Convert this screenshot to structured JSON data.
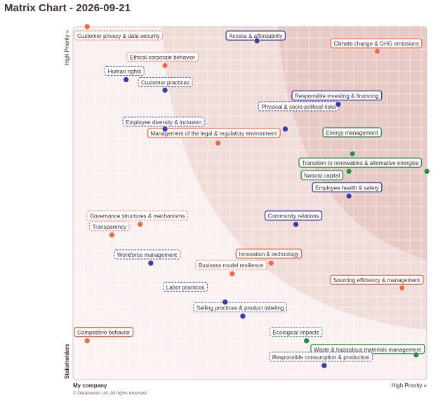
{
  "title": "Matrix Chart - 2026-09-21",
  "y_axis": {
    "top_label": "High Priority »",
    "bottom_label": "Stakeholders"
  },
  "x_axis": {
    "left_label": "My company",
    "right_label": "High Priority »"
  },
  "footer": "© Datamaran Ltd. All rights reserved",
  "colors": {
    "orange": "#f06a47",
    "blue": "#3a3aa8",
    "green": "#2f8a45",
    "background": "#f7eceb",
    "zone_mid": "#efd8d5",
    "zone_high": "#e7c6c2"
  },
  "chart_data": {
    "type": "scatter",
    "title": "Matrix Chart - 2026-09-21",
    "xlabel": "My company",
    "ylabel": "Stakeholders",
    "xlim": [
      0,
      100
    ],
    "ylim": [
      0,
      100
    ],
    "grid": true,
    "points": [
      {
        "label": "Customer privacy & data security",
        "x": 4,
        "y": 100,
        "group": "orange",
        "label_style": "dashed"
      },
      {
        "label": "Access & affordability",
        "x": 52,
        "y": 96,
        "group": "blue",
        "label_style": "solid"
      },
      {
        "label": "Climate change & GHG emissions",
        "x": 86,
        "y": 93,
        "group": "orange",
        "label_style": "solid"
      },
      {
        "label": "Ethical corporate behavior",
        "x": 26,
        "y": 89,
        "group": "orange",
        "label_style": "dashed"
      },
      {
        "label": "Human rights",
        "x": 15,
        "y": 85,
        "group": "blue",
        "label_style": "dashed"
      },
      {
        "label": "Customer practices",
        "x": 26,
        "y": 82,
        "group": "blue",
        "label_style": "dashed"
      },
      {
        "label": "Responsible investing & financing",
        "x": 75,
        "y": 78,
        "group": "blue",
        "label_style": "solid"
      },
      {
        "label": "Employee diversity & inclusion",
        "x": 26,
        "y": 71,
        "group": "blue",
        "label_style": "dashed"
      },
      {
        "label": "Physical & socio-political risks",
        "x": 60,
        "y": 71,
        "group": "blue",
        "label_style": "dashed"
      },
      {
        "label": "Management of the legal & regulatory environment",
        "x": 41,
        "y": 67,
        "group": "orange",
        "label_style": "solid"
      },
      {
        "label": "Energy management",
        "x": 79,
        "y": 64,
        "group": "green",
        "label_style": "solid"
      },
      {
        "label": "Transition to renewables & alternative energies",
        "x": 100,
        "y": 59,
        "group": "green",
        "label_style": "solid"
      },
      {
        "label": "Natural capital",
        "x": 78,
        "y": 59,
        "group": "green",
        "label_style": "solid"
      },
      {
        "label": "Employee health & safety",
        "x": 78,
        "y": 52,
        "group": "blue",
        "label_style": "solid"
      },
      {
        "label": "Governance structures & mechanisms",
        "x": 19,
        "y": 44,
        "group": "orange",
        "label_style": "dashed"
      },
      {
        "label": "Community relations",
        "x": 63,
        "y": 44,
        "group": "blue",
        "label_style": "solid"
      },
      {
        "label": "Transparency",
        "x": 11,
        "y": 41,
        "group": "orange",
        "label_style": "dashed"
      },
      {
        "label": "Workforce management",
        "x": 22,
        "y": 33,
        "group": "blue",
        "label_style": "dashed"
      },
      {
        "label": "Innovation & technology",
        "x": 56,
        "y": 33,
        "group": "orange",
        "label_style": "solid"
      },
      {
        "label": "Business model resilience",
        "x": 45,
        "y": 30,
        "group": "orange",
        "label_style": "dashed"
      },
      {
        "label": "Sourcing efficiency & management",
        "x": 93,
        "y": 26,
        "group": "orange",
        "label_style": "solid"
      },
      {
        "label": "Labor practices",
        "x": 43,
        "y": 22,
        "group": "blue",
        "label_style": "dashed"
      },
      {
        "label": "Selling practices & product labeling",
        "x": 48,
        "y": 18,
        "group": "blue",
        "label_style": "dashed"
      },
      {
        "label": "Competitive behavior",
        "x": 4,
        "y": 11,
        "group": "orange",
        "label_style": "solid"
      },
      {
        "label": "Ecological impacts",
        "x": 66,
        "y": 11,
        "group": "green",
        "label_style": "dashed"
      },
      {
        "label": "Waste & hazardous materials management",
        "x": 97,
        "y": 7,
        "group": "green",
        "label_style": "solid"
      },
      {
        "label": "Responsible consumption & production",
        "x": 71,
        "y": 4,
        "group": "blue",
        "label_style": "dashed"
      }
    ]
  }
}
